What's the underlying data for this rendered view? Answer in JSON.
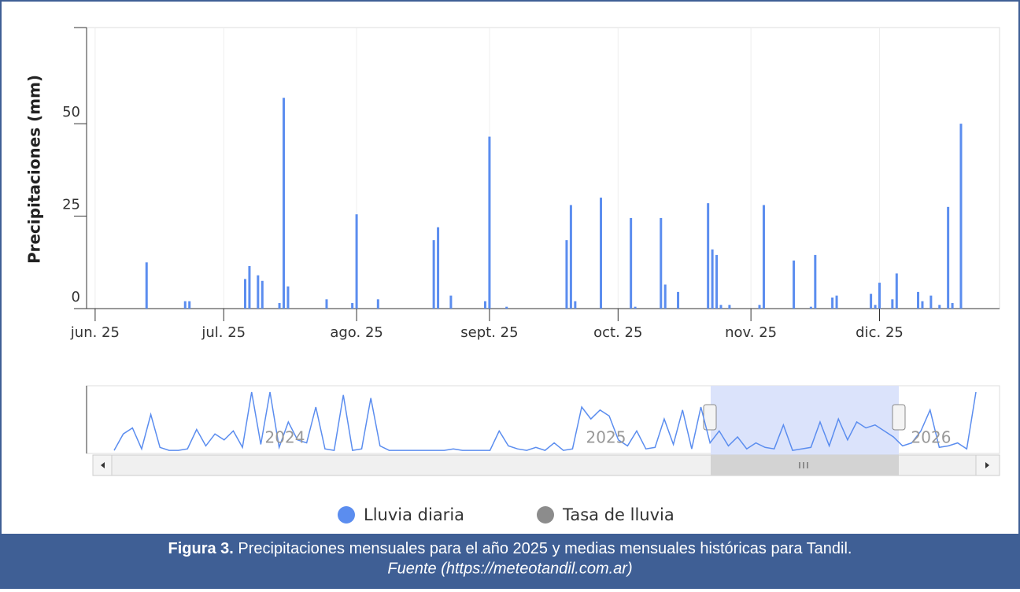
{
  "chart_data": {
    "type": "bar",
    "y_label": "Precipitaciones (mm)",
    "ylim": [
      0,
      76
    ],
    "yticks": [
      0,
      25,
      50
    ],
    "xlim": [
      150,
      363
    ],
    "xticks": [
      {
        "value": 152,
        "label": "jun. 25"
      },
      {
        "value": 182,
        "label": "jul. 25"
      },
      {
        "value": 213,
        "label": "ago. 25"
      },
      {
        "value": 244,
        "label": "sept. 25"
      },
      {
        "value": 274,
        "label": "oct. 25"
      },
      {
        "value": 305,
        "label": "nov. 25"
      },
      {
        "value": 335,
        "label": "dic. 25"
      }
    ],
    "grid": true,
    "series": [
      {
        "name": "Lluvia diaria",
        "color": "#5b8def",
        "x": [
          164,
          173,
          174,
          187,
          188,
          190,
          191,
          195,
          196,
          197,
          206,
          212,
          213,
          218,
          231,
          232,
          235,
          243,
          244,
          248,
          262,
          263,
          264,
          270,
          277,
          278,
          284,
          285,
          288,
          295,
          296,
          297,
          298,
          300,
          307,
          308,
          315,
          319,
          320,
          324,
          325,
          333,
          334,
          335,
          338,
          339,
          344,
          345,
          347,
          349,
          351,
          352,
          354
        ],
        "values": [
          12.5,
          2,
          2,
          8,
          11.5,
          9,
          7.5,
          1.5,
          57,
          6,
          2.5,
          1.5,
          25.5,
          2.5,
          18.5,
          22,
          3.5,
          2,
          46.5,
          0.5,
          18.5,
          28,
          2,
          30,
          24.5,
          0.5,
          24.5,
          6.5,
          4.5,
          28.5,
          16,
          14.5,
          1,
          1,
          1,
          28,
          13,
          0.5,
          14.5,
          3,
          3.5,
          4,
          1,
          7,
          2.5,
          9.5,
          4.5,
          2,
          3.5,
          1,
          27.5,
          1.5,
          50
        ]
      },
      {
        "name": "Tasa de lluvia",
        "color": "#8c8c8c",
        "x": [],
        "values": []
      }
    ],
    "navigator": {
      "labels": [
        "2024",
        "2025",
        "2026"
      ],
      "values": [
        1,
        12,
        16,
        2,
        25,
        3,
        1,
        1,
        2,
        15,
        4,
        12,
        8,
        14,
        3,
        40,
        5,
        40,
        3,
        20,
        8,
        6,
        30,
        2,
        1,
        38,
        1,
        2,
        36,
        4,
        1,
        1,
        1,
        1,
        1,
        1,
        1,
        2,
        1,
        1,
        1,
        1,
        14,
        4,
        2,
        1,
        3,
        1,
        6,
        1,
        2,
        30,
        22,
        28,
        24,
        8,
        4,
        14,
        2,
        3,
        22,
        5,
        28,
        2,
        30,
        6,
        14,
        4,
        10,
        2,
        6,
        3,
        2,
        18,
        1,
        2,
        3,
        20,
        4,
        22,
        8,
        20,
        16,
        18,
        14,
        10,
        4,
        6,
        14,
        28,
        3,
        4,
        6,
        2,
        40
      ]
    }
  },
  "caption": {
    "label": "Figura 3.",
    "text": "Precipitaciones mensuales para el año 2025 y medias mensuales históricas para Tandil.",
    "source": "Fuente (https://meteotandil.com.ar)"
  }
}
